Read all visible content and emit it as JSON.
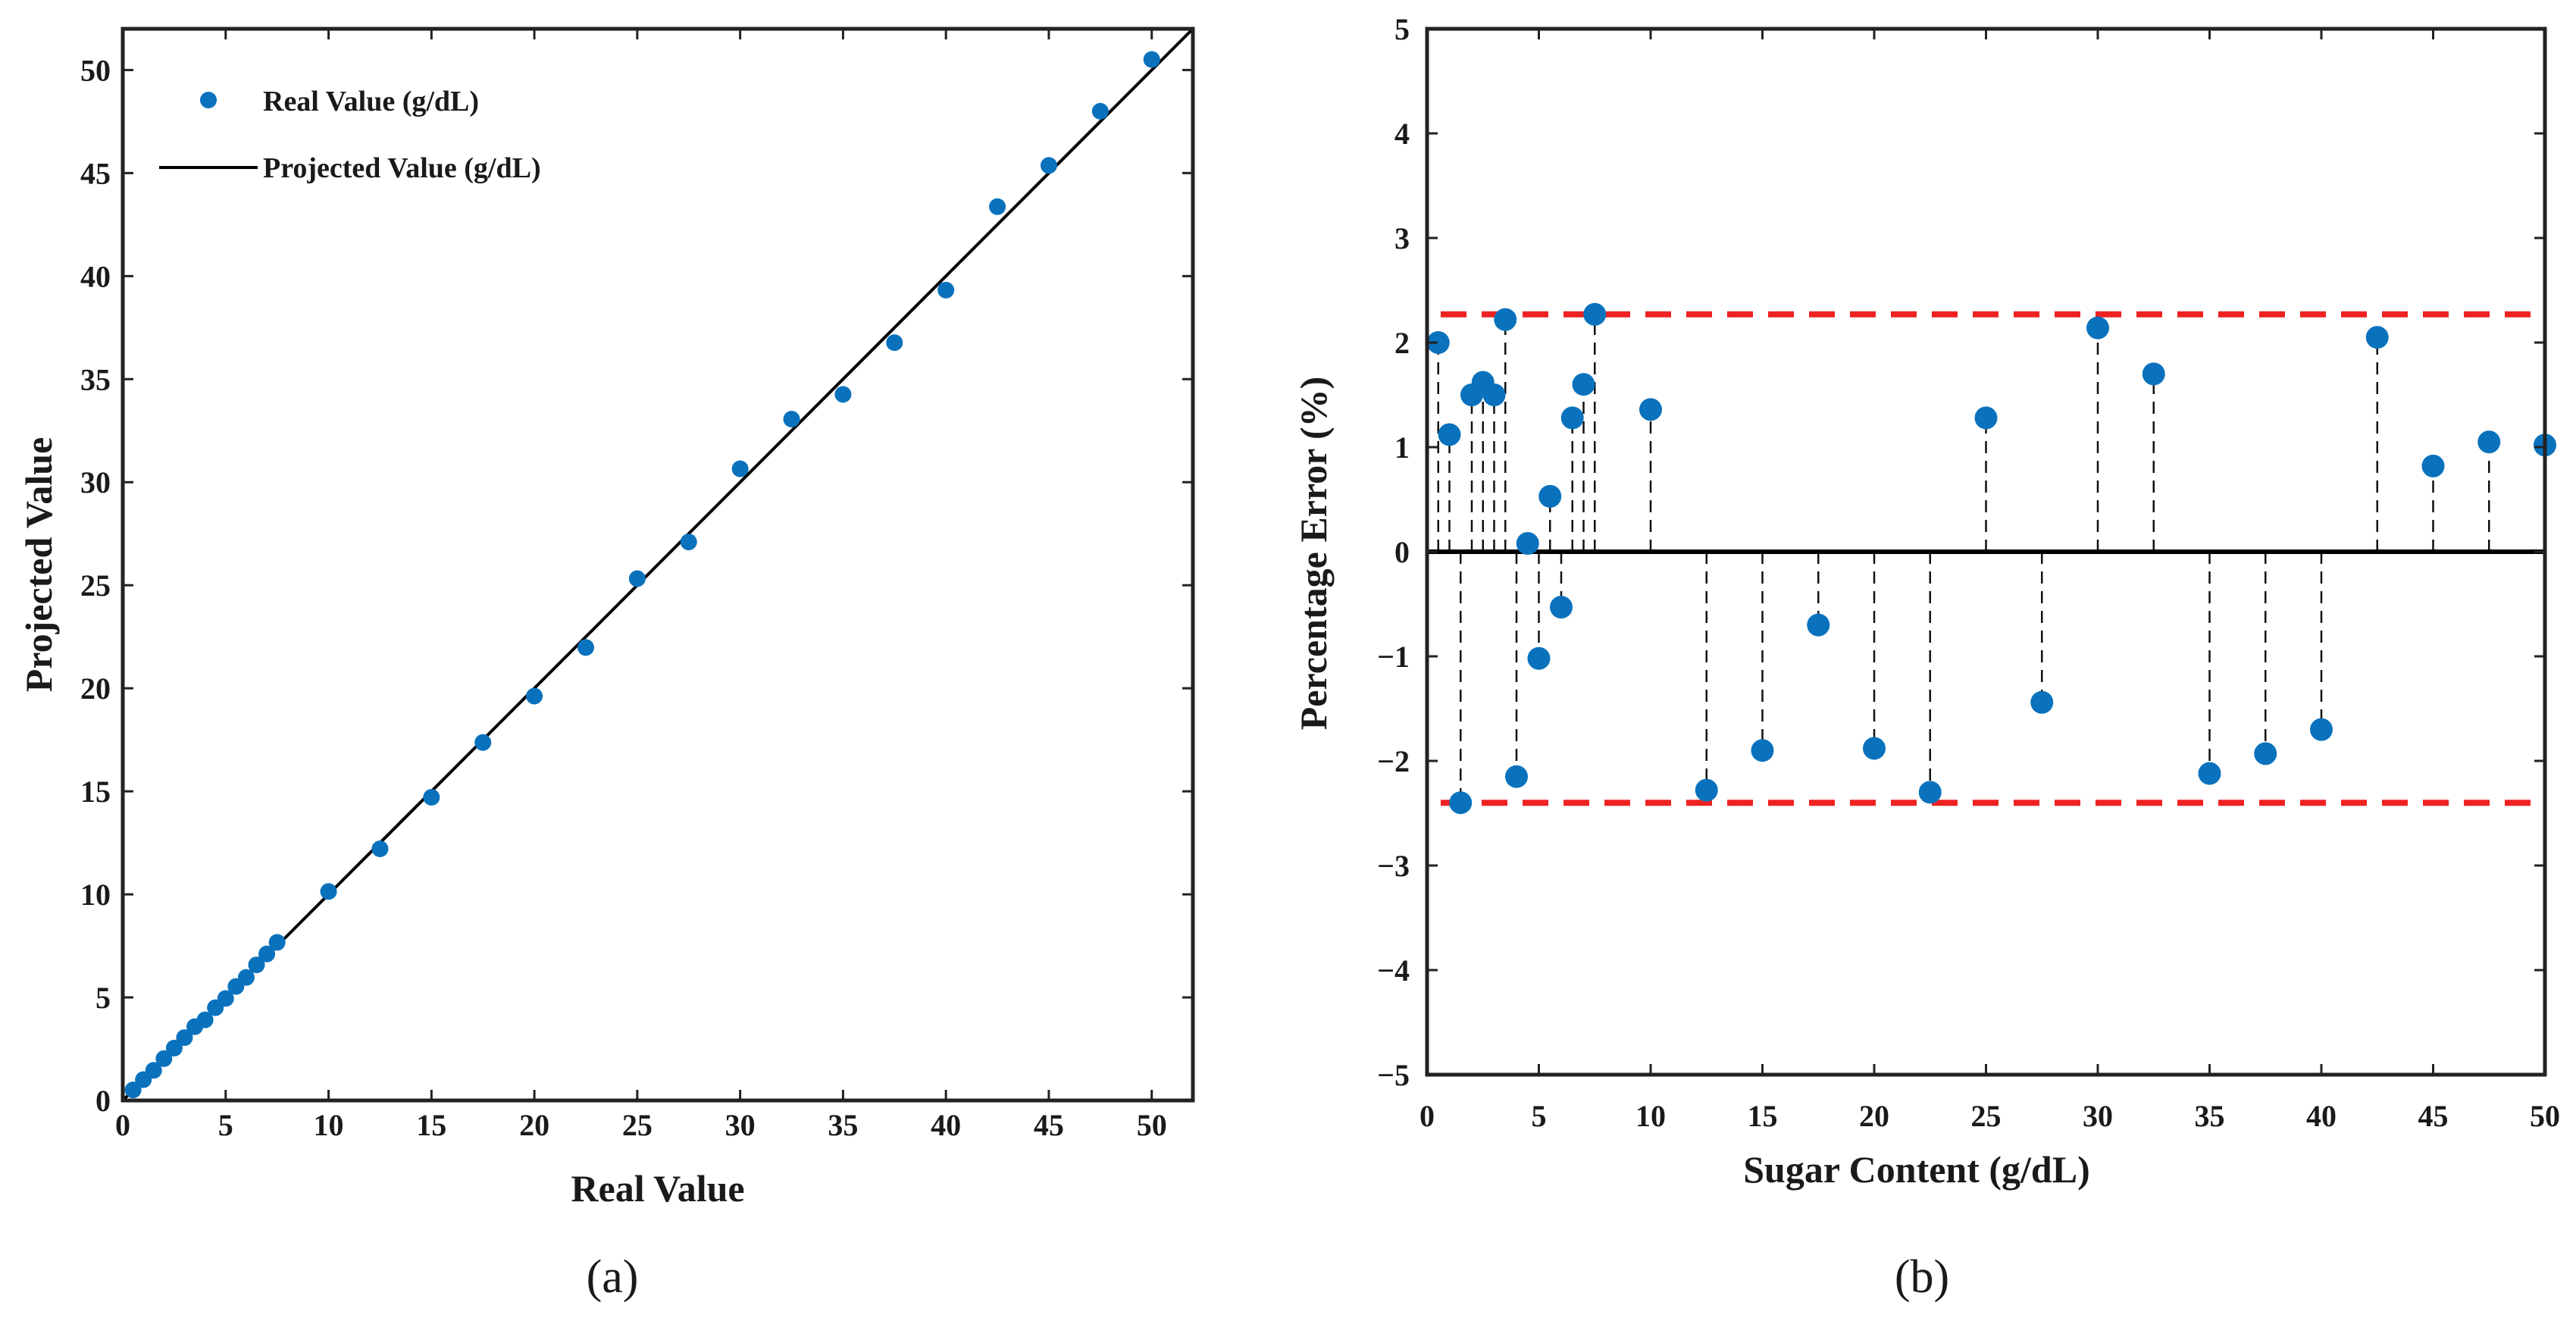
{
  "chart_data": [
    {
      "id": "a",
      "type": "scatter",
      "caption": "(a)",
      "xlabel": "Real Value",
      "ylabel": "Projected Value",
      "xlim": [
        0,
        52
      ],
      "ylim": [
        0,
        52
      ],
      "xticks": [
        0,
        5,
        10,
        15,
        20,
        25,
        30,
        35,
        40,
        45,
        50
      ],
      "yticks": [
        0,
        5,
        10,
        15,
        20,
        25,
        30,
        35,
        40,
        45,
        50
      ],
      "grid": false,
      "legend": {
        "position": "top-left",
        "entries": [
          {
            "label": "Real Value (g/dL)",
            "marker": "dot"
          },
          {
            "label": "Projected Value (g/dL)",
            "marker": "line"
          }
        ]
      },
      "series": [
        {
          "name": "Real Value (g/dL)",
          "color": "#0a72bd",
          "points": [
            [
              0.5,
              0.51
            ],
            [
              1.0,
              1.01
            ],
            [
              1.5,
              1.46
            ],
            [
              2.0,
              2.03
            ],
            [
              2.5,
              2.54
            ],
            [
              3.0,
              3.05
            ],
            [
              3.5,
              3.58
            ],
            [
              4.0,
              3.91
            ],
            [
              4.5,
              4.5
            ],
            [
              5.0,
              4.95
            ],
            [
              5.5,
              5.53
            ],
            [
              6.0,
              5.97
            ],
            [
              6.5,
              6.58
            ],
            [
              7.0,
              7.11
            ],
            [
              7.5,
              7.67
            ],
            [
              10.0,
              10.14
            ],
            [
              12.5,
              12.21
            ],
            [
              15.0,
              14.71
            ],
            [
              17.5,
              17.37
            ],
            [
              20.0,
              19.62
            ],
            [
              22.5,
              21.98
            ],
            [
              25.0,
              25.32
            ],
            [
              27.5,
              27.1
            ],
            [
              30.0,
              30.65
            ],
            [
              32.5,
              33.06
            ],
            [
              35.0,
              34.26
            ],
            [
              37.5,
              36.77
            ],
            [
              40.0,
              39.32
            ],
            [
              42.5,
              43.37
            ],
            [
              45.0,
              45.37
            ],
            [
              47.5,
              48.0
            ],
            [
              50.0,
              50.51
            ]
          ]
        },
        {
          "name": "Projected Value (g/dL)",
          "color": "#000000",
          "type": "line",
          "x": [
            0,
            52
          ],
          "y": [
            0,
            52
          ]
        }
      ]
    },
    {
      "id": "b",
      "type": "stem",
      "caption": "(b)",
      "xlabel": "Sugar Content (g/dL)",
      "ylabel": "Percentage Error (%)",
      "xlim": [
        0,
        50
      ],
      "ylim": [
        -5,
        5
      ],
      "xticks": [
        0,
        5,
        10,
        15,
        20,
        25,
        30,
        35,
        40,
        45,
        50
      ],
      "yticks": [
        5,
        4,
        3,
        2,
        1,
        0,
        -1,
        -2,
        -3,
        -4,
        -5
      ],
      "grid": false,
      "reference_lines": [
        {
          "name": "upper-limit",
          "y": 2.27,
          "color": "#ee2222",
          "style": "dashed"
        },
        {
          "name": "lower-limit",
          "y": -2.4,
          "color": "#ee2222",
          "style": "dashed"
        }
      ],
      "series": [
        {
          "name": "Percentage Error",
          "color": "#0a72bd",
          "points": [
            [
              0.5,
              2.0
            ],
            [
              1.0,
              1.12
            ],
            [
              1.5,
              -2.4
            ],
            [
              2.0,
              1.5
            ],
            [
              2.5,
              1.62
            ],
            [
              3.0,
              1.5
            ],
            [
              3.5,
              2.22
            ],
            [
              4.0,
              -2.15
            ],
            [
              4.5,
              0.08
            ],
            [
              5.0,
              -1.02
            ],
            [
              5.5,
              0.53
            ],
            [
              6.0,
              -0.53
            ],
            [
              6.5,
              1.28
            ],
            [
              7.0,
              1.6
            ],
            [
              7.5,
              2.27
            ],
            [
              10.0,
              1.36
            ],
            [
              12.5,
              -2.28
            ],
            [
              15.0,
              -1.9
            ],
            [
              17.5,
              -0.7
            ],
            [
              20.0,
              -1.88
            ],
            [
              22.5,
              -2.3
            ],
            [
              25.0,
              1.28
            ],
            [
              27.5,
              -1.44
            ],
            [
              30.0,
              2.14
            ],
            [
              32.5,
              1.7
            ],
            [
              35.0,
              -2.12
            ],
            [
              37.5,
              -1.93
            ],
            [
              40.0,
              -1.7
            ],
            [
              42.5,
              2.05
            ],
            [
              45.0,
              0.82
            ],
            [
              47.5,
              1.05
            ],
            [
              50.0,
              1.02
            ]
          ]
        }
      ]
    }
  ]
}
